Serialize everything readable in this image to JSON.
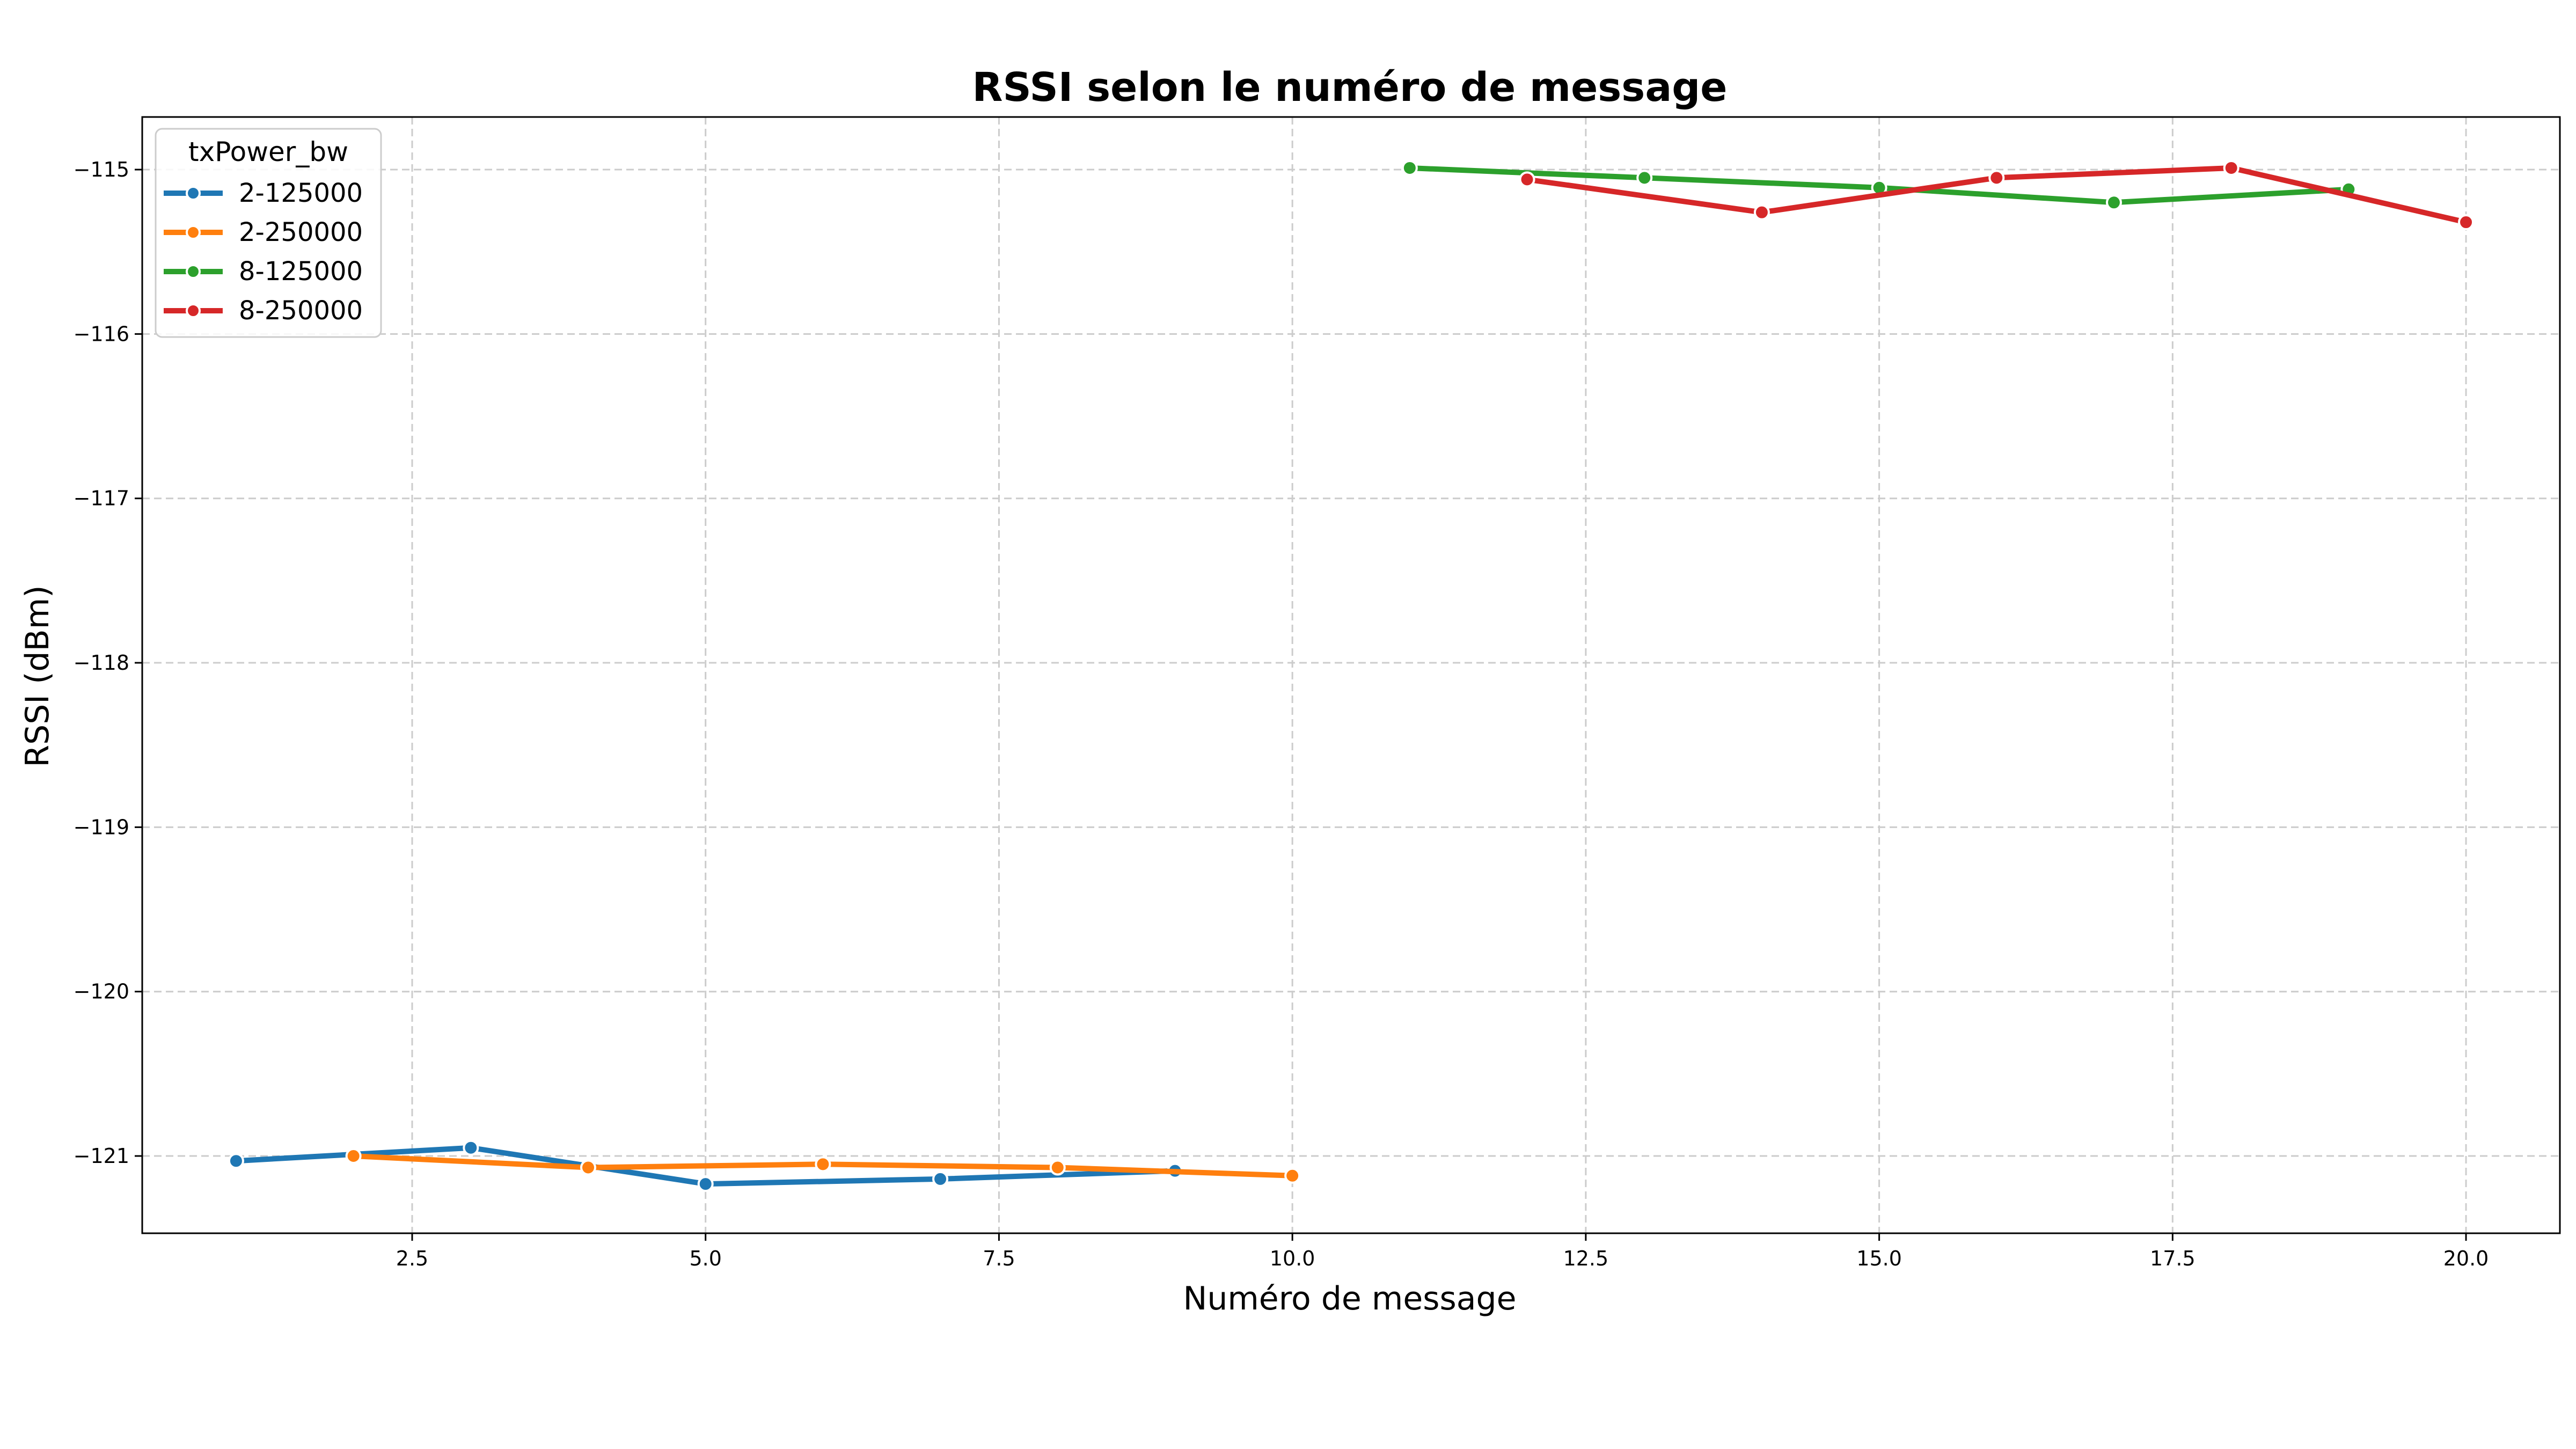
{
  "chart_data": {
    "type": "line",
    "title": "RSSI selon le numéro de message",
    "xlabel": "Numéro de message",
    "ylabel": "RSSI (dBm)",
    "xlim": [
      0.2,
      20.8
    ],
    "ylim": [
      -121.47,
      -114.68
    ],
    "xticks": [
      2.5,
      5.0,
      7.5,
      10.0,
      12.5,
      15.0,
      17.5,
      20.0
    ],
    "xtick_labels": [
      "2.5",
      "5.0",
      "7.5",
      "10.0",
      "12.5",
      "15.0",
      "17.5",
      "20.0"
    ],
    "yticks": [
      -115,
      -116,
      -117,
      -118,
      -119,
      -120,
      -121
    ],
    "ytick_labels": [
      "−115",
      "−116",
      "−117",
      "−118",
      "−119",
      "−120",
      "−121"
    ],
    "grid": true,
    "legend": {
      "title": "txPower_bw",
      "position": "top-left"
    },
    "series": [
      {
        "name": "2-125000",
        "color": "#1f77b4",
        "x": [
          1,
          3,
          5,
          7,
          9
        ],
        "y": [
          -121.03,
          -120.95,
          -121.17,
          -121.14,
          -121.09
        ]
      },
      {
        "name": "2-250000",
        "color": "#ff7f0e",
        "x": [
          2,
          4,
          6,
          8,
          10
        ],
        "y": [
          -121.0,
          -121.07,
          -121.05,
          -121.07,
          -121.12
        ]
      },
      {
        "name": "8-125000",
        "color": "#2ca02c",
        "x": [
          11,
          13,
          15,
          17,
          19
        ],
        "y": [
          -114.99,
          -115.05,
          -115.11,
          -115.2,
          -115.12
        ]
      },
      {
        "name": "8-250000",
        "color": "#d62728",
        "x": [
          12,
          14,
          16,
          18,
          20
        ],
        "y": [
          -115.06,
          -115.26,
          -115.05,
          -114.99,
          -115.32
        ]
      }
    ]
  }
}
